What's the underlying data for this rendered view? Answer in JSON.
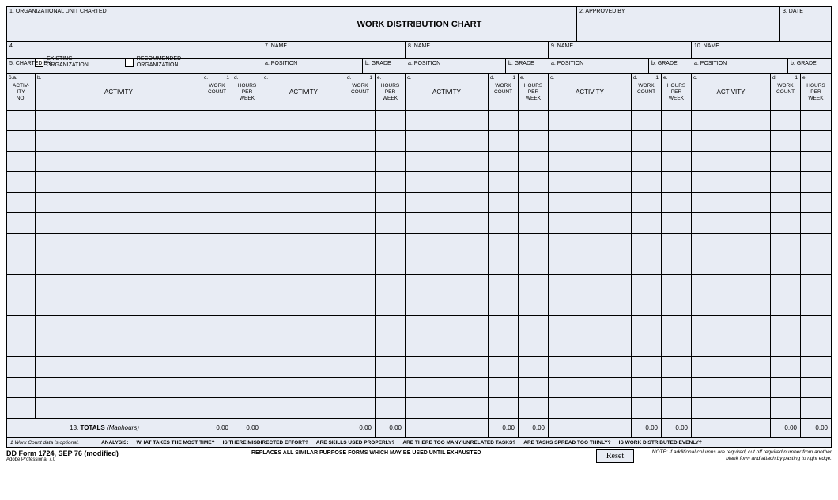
{
  "header": {
    "f1": "1.  ORGANIZATIONAL UNIT CHARTED",
    "title": "WORK DISTRIBUTION CHART",
    "f2": "2.  APPROVED BY",
    "f3": "3.  DATE",
    "f4": "4.",
    "existing": "EXISTING\nORGANIZATION",
    "recommended": "RECOMMENDED\nORGANIZATION",
    "f5": "5.  CHARTED BY",
    "f7": "7.  NAME",
    "f8": "8.  NAME",
    "f9": "9.  NAME",
    "f10": "10.  NAME",
    "pos_a": "a.  POSITION",
    "grd_b": "b. GRADE"
  },
  "cols": {
    "c6a_top": "6.a.",
    "c6a": "ACTIV-\nITY\nNO.",
    "c_b": "b.",
    "c_c": "c.",
    "c_d": "d.",
    "c_e": "e.",
    "activity": "ACTIVITY",
    "work_count": "WORK\nCOUNT",
    "hours": "HOURS\nPER\nWEEK",
    "wc_note": "1"
  },
  "totals": {
    "label": "13. TOTALS (Manhours)",
    "value": "0.00"
  },
  "footnote": {
    "n1": "1  Work Count data is optional.",
    "analysis_lbl": "ANALYSIS:",
    "q1": "WHAT TAKES THE MOST TIME?",
    "q2": "IS THERE MISDIRECTED EFFORT?",
    "q3": "ARE SKILLS USED PROPERLY?",
    "q4": "ARE THERE TOO MANY UNRELATED TASKS?",
    "q5": "ARE TASKS SPREAD TOO THINLY?",
    "q6": "IS WORK DISTRIBUTED EVENLY?"
  },
  "below": {
    "form_id": "DD Form 1724, SEP 76 (modified)",
    "adobe": "Adobe Professional 7.0",
    "replaces": "REPLACES ALL SIMILAR PURPOSE FORMS WHICH MAY BE USED UNTIL EXHAUSTED",
    "reset": "Reset",
    "note": "NOTE:  If additional columns are required, cut off required number from another blank form and attach by pasting to right edge."
  },
  "style": {
    "row_count": 15,
    "name_cols": 4,
    "bg": "#e8ecf4",
    "border": "#000000"
  }
}
